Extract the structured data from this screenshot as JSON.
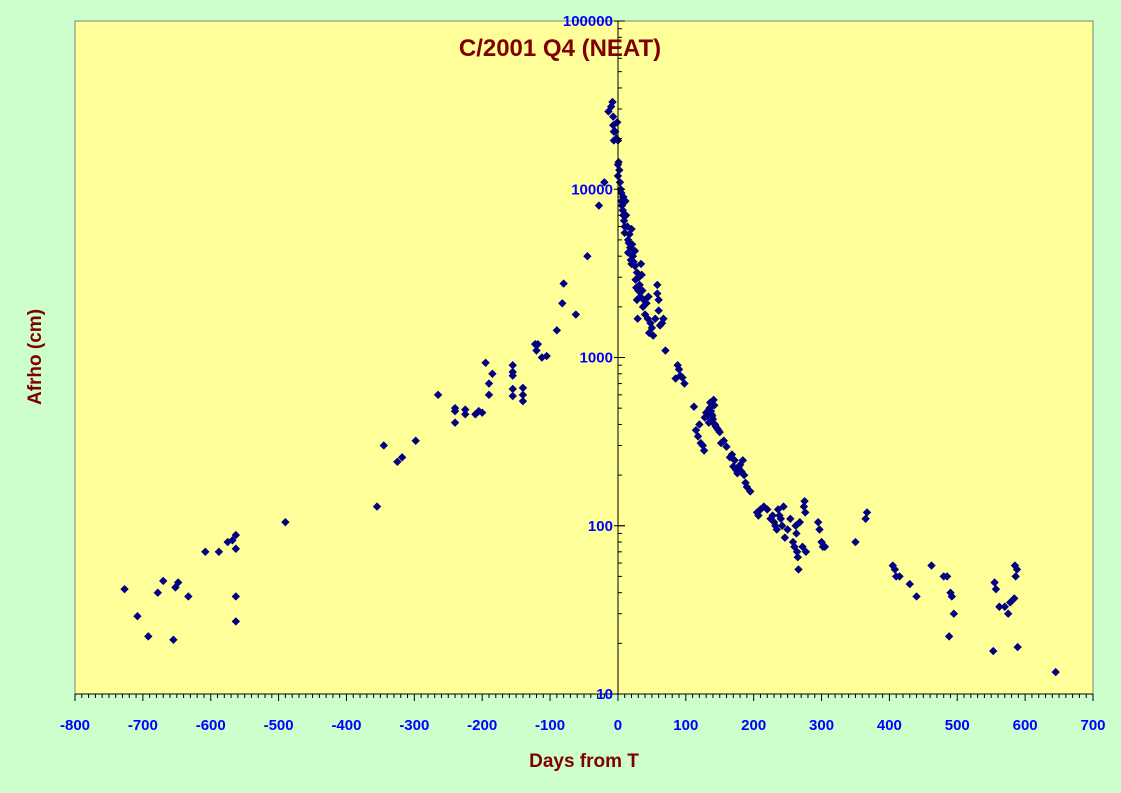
{
  "chart_data": {
    "type": "scatter",
    "title": "C/2001 Q4 (NEAT)",
    "xlabel": "Days from T",
    "ylabel": "Afrho (cm)",
    "xlim": [
      -800,
      700
    ],
    "ylim": [
      10,
      100000
    ],
    "y_scale": "log",
    "x_ticks": [
      "-800",
      "-700",
      "-600",
      "-500",
      "-400",
      "-300",
      "-200",
      "-100",
      "0",
      "100",
      "200",
      "300",
      "400",
      "500",
      "600",
      "700"
    ],
    "y_ticks": [
      "10",
      "100",
      "1000",
      "10000",
      "100000"
    ],
    "grid": false,
    "legend": "none",
    "marker": "diamond",
    "colors": {
      "background": "#ccffcc",
      "plot_area": "#ffff99",
      "marker": "#000080",
      "title": "#800000",
      "ticks": "#0000ff"
    },
    "points": [
      [
        -727,
        42
      ],
      [
        -708,
        29
      ],
      [
        -692,
        22
      ],
      [
        -678,
        40
      ],
      [
        -670,
        47
      ],
      [
        -655,
        21
      ],
      [
        -652,
        43
      ],
      [
        -648,
        46
      ],
      [
        -633,
        38
      ],
      [
        -608,
        70
      ],
      [
        -588,
        70
      ],
      [
        -575,
        80
      ],
      [
        -568,
        82
      ],
      [
        -563,
        88
      ],
      [
        -563,
        73
      ],
      [
        -563,
        38
      ],
      [
        -563,
        27
      ],
      [
        -490,
        105
      ],
      [
        -355,
        130
      ],
      [
        -345,
        300
      ],
      [
        -325,
        240
      ],
      [
        -318,
        255
      ],
      [
        -298,
        320
      ],
      [
        -265,
        600
      ],
      [
        -240,
        500
      ],
      [
        -240,
        480
      ],
      [
        -240,
        410
      ],
      [
        -225,
        490
      ],
      [
        -225,
        460
      ],
      [
        -210,
        460
      ],
      [
        -205,
        480
      ],
      [
        -200,
        470
      ],
      [
        -195,
        930
      ],
      [
        -190,
        700
      ],
      [
        -190,
        600
      ],
      [
        -185,
        800
      ],
      [
        -155,
        900
      ],
      [
        -155,
        820
      ],
      [
        -155,
        780
      ],
      [
        -155,
        650
      ],
      [
        -155,
        590
      ],
      [
        -140,
        660
      ],
      [
        -140,
        600
      ],
      [
        -140,
        550
      ],
      [
        -122,
        1200
      ],
      [
        -120,
        1100
      ],
      [
        -118,
        1200
      ],
      [
        -112,
        1000
      ],
      [
        -105,
        1020
      ],
      [
        -90,
        1450
      ],
      [
        -82,
        2100
      ],
      [
        -80,
        2750
      ],
      [
        -62,
        1800
      ],
      [
        -45,
        4000
      ],
      [
        -28,
        8000
      ],
      [
        -20,
        11000
      ],
      [
        -14,
        29000
      ],
      [
        -10,
        31000
      ],
      [
        -8,
        33000
      ],
      [
        -7,
        27000
      ],
      [
        -7,
        24000
      ],
      [
        -6,
        22000
      ],
      [
        -6,
        19500
      ],
      [
        -4,
        22000
      ],
      [
        -2,
        20000
      ],
      [
        -1,
        25000
      ],
      [
        0,
        19500
      ],
      [
        0,
        14000
      ],
      [
        0,
        12000
      ],
      [
        1,
        14500
      ],
      [
        2,
        13000
      ],
      [
        3,
        11000
      ],
      [
        4,
        10000
      ],
      [
        5,
        9500
      ],
      [
        5,
        8500
      ],
      [
        6,
        8000
      ],
      [
        7,
        7500
      ],
      [
        8,
        9000
      ],
      [
        8,
        7000
      ],
      [
        9,
        6500
      ],
      [
        10,
        6000
      ],
      [
        10,
        5500
      ],
      [
        11,
        8500
      ],
      [
        12,
        7000
      ],
      [
        14,
        6000
      ],
      [
        15,
        5000
      ],
      [
        15,
        4200
      ],
      [
        16,
        4800
      ],
      [
        17,
        5400
      ],
      [
        18,
        4500
      ],
      [
        19,
        3800
      ],
      [
        20,
        5800
      ],
      [
        20,
        3600
      ],
      [
        21,
        4700
      ],
      [
        22,
        4000
      ],
      [
        23,
        3700
      ],
      [
        25,
        4300
      ],
      [
        25,
        3500
      ],
      [
        26,
        2900
      ],
      [
        27,
        2600
      ],
      [
        28,
        3200
      ],
      [
        28,
        2200
      ],
      [
        29,
        1700
      ],
      [
        30,
        2500
      ],
      [
        31,
        3000
      ],
      [
        32,
        2700
      ],
      [
        33,
        2300
      ],
      [
        34,
        3600
      ],
      [
        35,
        3100
      ],
      [
        36,
        2500
      ],
      [
        37,
        2000
      ],
      [
        38,
        2200
      ],
      [
        40,
        1800
      ],
      [
        42,
        2100
      ],
      [
        44,
        1700
      ],
      [
        45,
        2300
      ],
      [
        46,
        1400
      ],
      [
        48,
        1600
      ],
      [
        50,
        1500
      ],
      [
        52,
        1350
      ],
      [
        55,
        1700
      ],
      [
        58,
        2700
      ],
      [
        58,
        2400
      ],
      [
        60,
        2200
      ],
      [
        60,
        1900
      ],
      [
        62,
        1550
      ],
      [
        65,
        1600
      ],
      [
        67,
        1700
      ],
      [
        70,
        1100
      ],
      [
        85,
        750
      ],
      [
        88,
        900
      ],
      [
        90,
        850
      ],
      [
        92,
        780
      ],
      [
        95,
        760
      ],
      [
        98,
        700
      ],
      [
        112,
        510
      ],
      [
        115,
        370
      ],
      [
        118,
        340
      ],
      [
        120,
        400
      ],
      [
        122,
        310
      ],
      [
        125,
        300
      ],
      [
        127,
        280
      ],
      [
        128,
        440
      ],
      [
        130,
        470
      ],
      [
        132,
        450
      ],
      [
        134,
        410
      ],
      [
        135,
        500
      ],
      [
        136,
        540
      ],
      [
        137,
        480
      ],
      [
        138,
        460
      ],
      [
        139,
        450
      ],
      [
        140,
        430
      ],
      [
        141,
        560
      ],
      [
        142,
        520
      ],
      [
        143,
        400
      ],
      [
        144,
        390
      ],
      [
        146,
        380
      ],
      [
        148,
        370
      ],
      [
        150,
        360
      ],
      [
        152,
        310
      ],
      [
        156,
        320
      ],
      [
        160,
        295
      ],
      [
        165,
        255
      ],
      [
        168,
        265
      ],
      [
        170,
        225
      ],
      [
        172,
        245
      ],
      [
        174,
        215
      ],
      [
        176,
        205
      ],
      [
        178,
        220
      ],
      [
        180,
        230
      ],
      [
        182,
        210
      ],
      [
        184,
        245
      ],
      [
        186,
        200
      ],
      [
        188,
        180
      ],
      [
        190,
        170
      ],
      [
        195,
        160
      ],
      [
        205,
        120
      ],
      [
        207,
        115
      ],
      [
        210,
        125
      ],
      [
        215,
        130
      ],
      [
        220,
        125
      ],
      [
        225,
        110
      ],
      [
        228,
        115
      ],
      [
        230,
        105
      ],
      [
        232,
        100
      ],
      [
        234,
        95
      ],
      [
        236,
        125
      ],
      [
        238,
        115
      ],
      [
        240,
        110
      ],
      [
        242,
        100
      ],
      [
        244,
        130
      ],
      [
        246,
        85
      ],
      [
        250,
        95
      ],
      [
        254,
        110
      ],
      [
        258,
        80
      ],
      [
        260,
        75
      ],
      [
        262,
        100
      ],
      [
        263,
        90
      ],
      [
        264,
        70
      ],
      [
        265,
        65
      ],
      [
        266,
        55
      ],
      [
        268,
        105
      ],
      [
        272,
        75
      ],
      [
        274,
        130
      ],
      [
        275,
        140
      ],
      [
        276,
        120
      ],
      [
        277,
        70
      ],
      [
        295,
        105
      ],
      [
        297,
        95
      ],
      [
        300,
        80
      ],
      [
        302,
        75
      ],
      [
        305,
        75
      ],
      [
        350,
        80
      ],
      [
        365,
        110
      ],
      [
        367,
        120
      ],
      [
        405,
        58
      ],
      [
        408,
        55
      ],
      [
        410,
        50
      ],
      [
        415,
        50
      ],
      [
        430,
        45
      ],
      [
        440,
        38
      ],
      [
        462,
        58
      ],
      [
        480,
        50
      ],
      [
        485,
        50
      ],
      [
        488,
        22
      ],
      [
        490,
        40
      ],
      [
        492,
        38
      ],
      [
        495,
        30
      ],
      [
        553,
        18
      ],
      [
        555,
        46
      ],
      [
        557,
        42
      ],
      [
        562,
        33
      ],
      [
        570,
        33
      ],
      [
        575,
        30
      ],
      [
        578,
        35
      ],
      [
        584,
        37
      ],
      [
        585,
        58
      ],
      [
        586,
        50
      ],
      [
        588,
        55
      ],
      [
        589,
        19
      ],
      [
        645,
        13.5
      ]
    ]
  }
}
